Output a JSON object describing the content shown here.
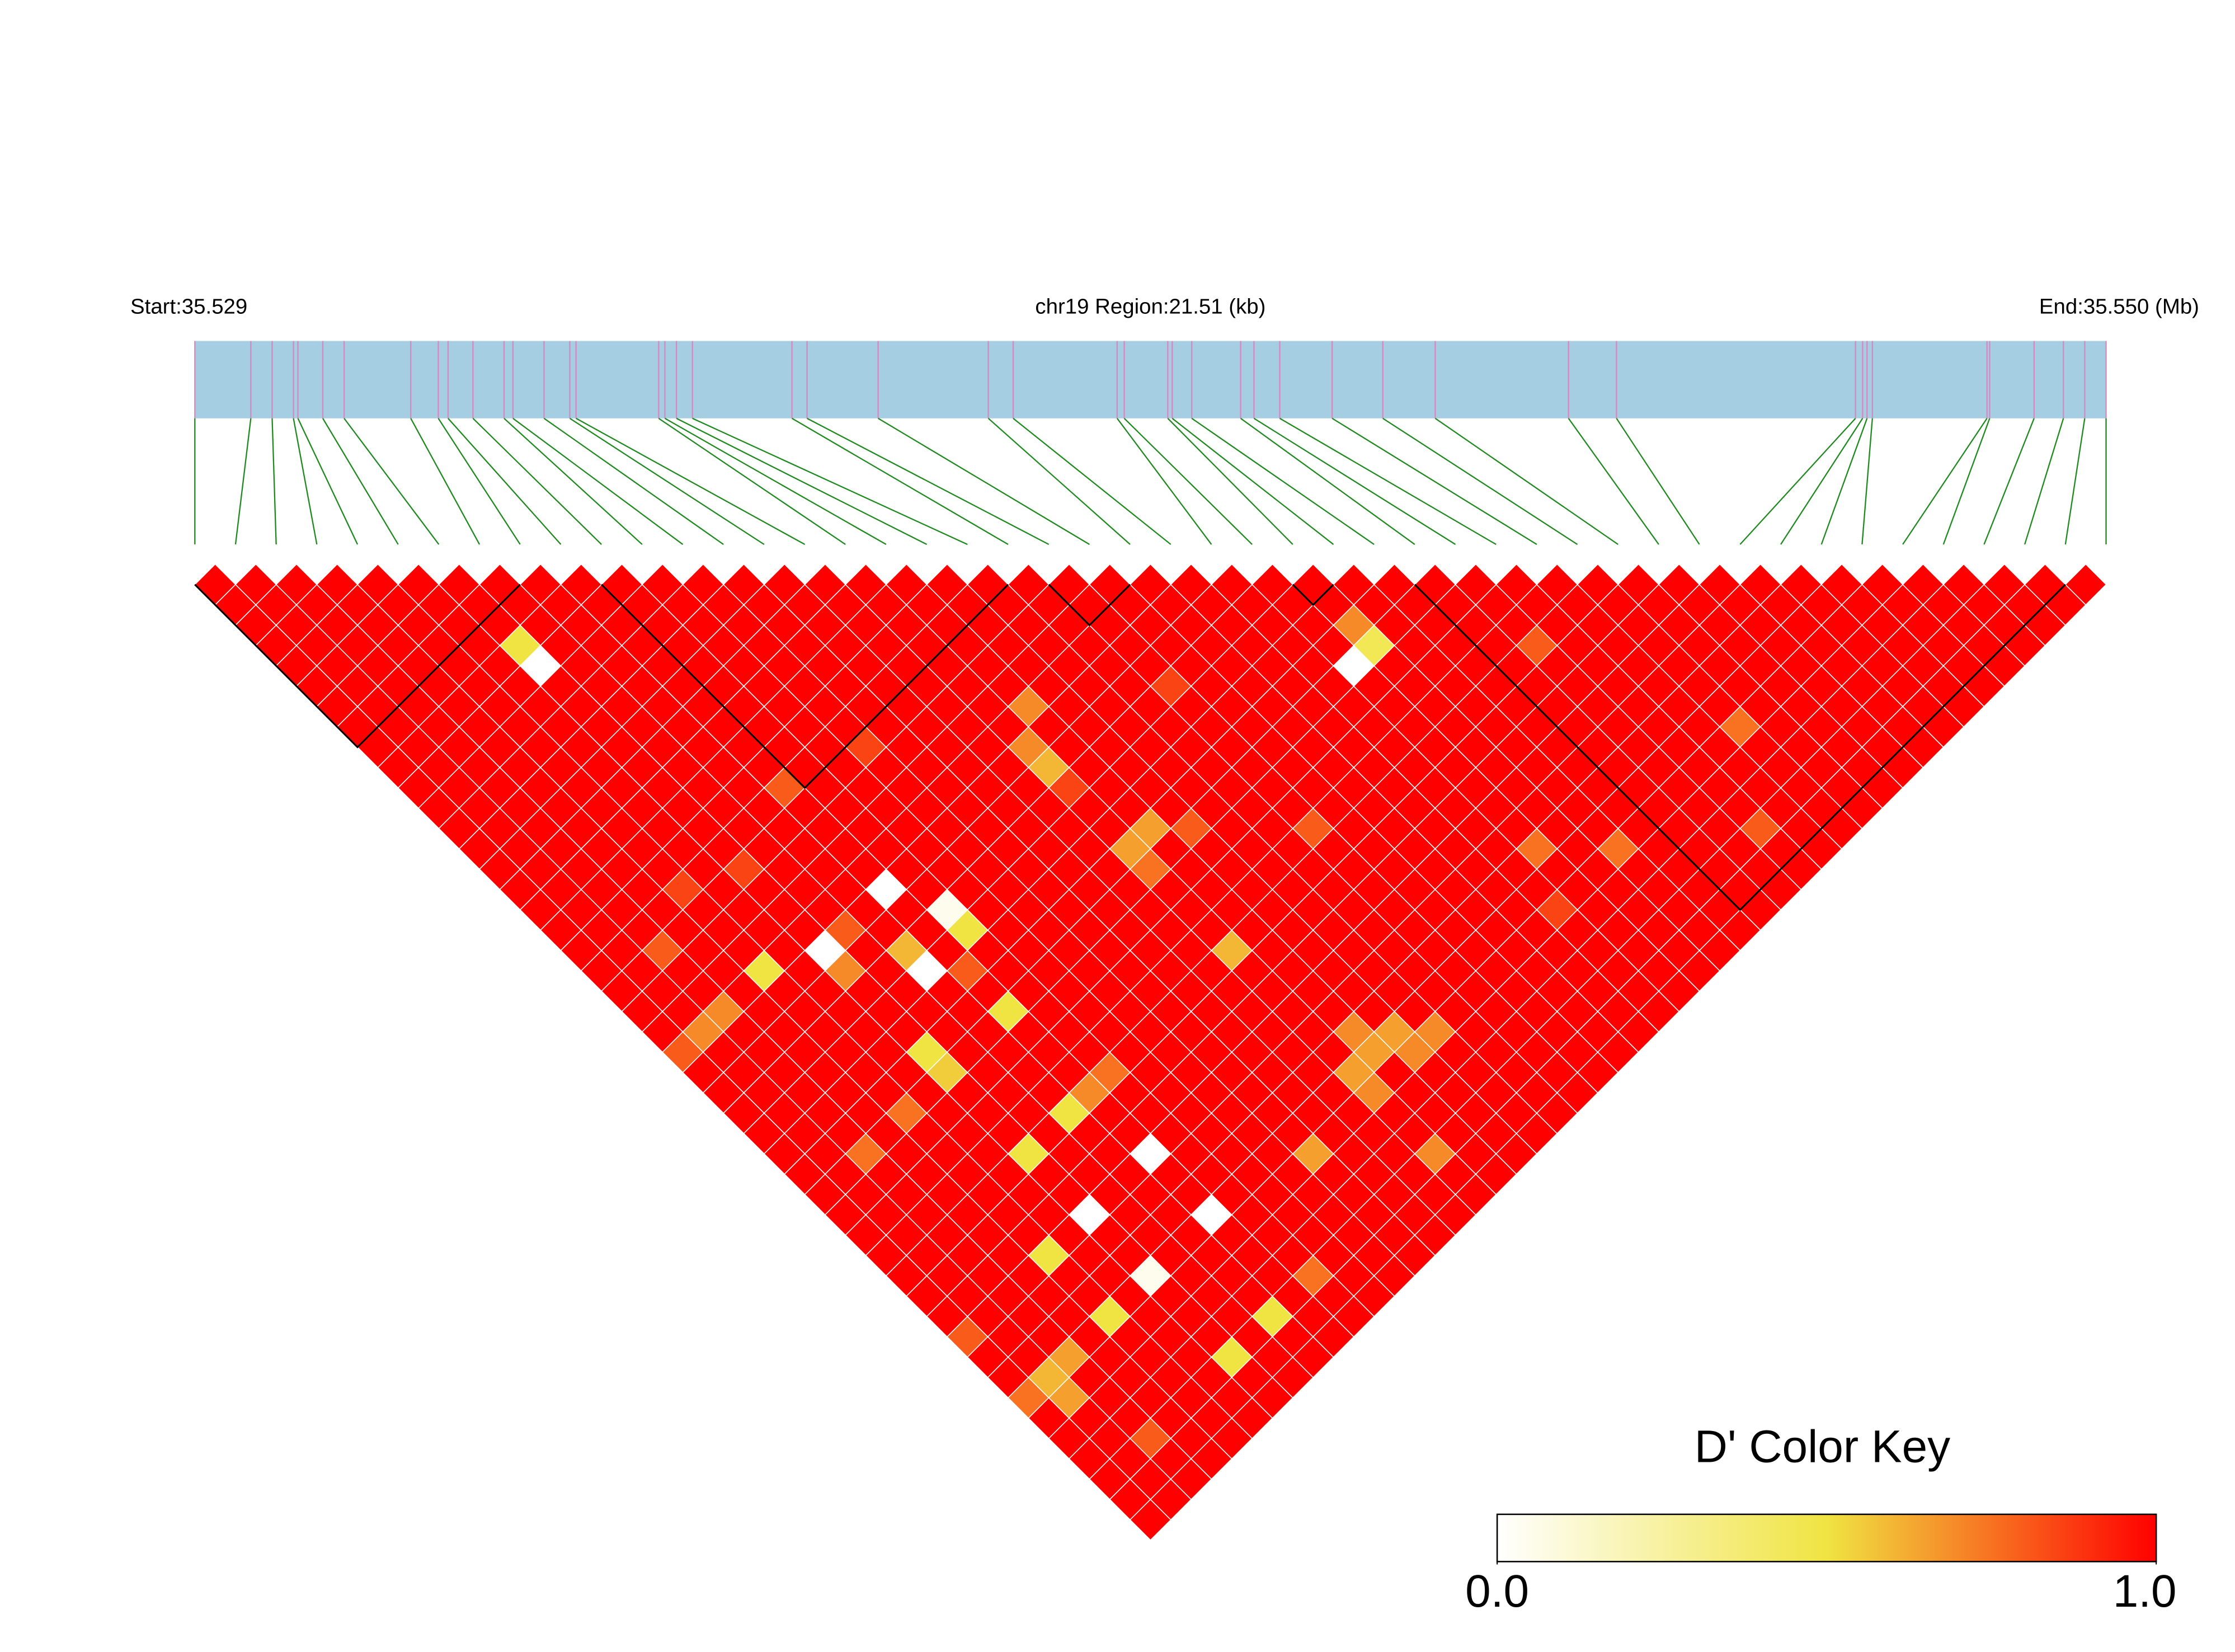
{
  "chart_data": {
    "type": "ld_heatmap",
    "start_label": "Start:35.529",
    "region_label": "chr19 Region:21.51 (kb)",
    "end_label": "End:35.550 (Mb)",
    "xlim": [
      0,
      21.51
    ],
    "snp_positions_kb": [
      0,
      0.63,
      0.87,
      1.11,
      1.16,
      1.44,
      1.68,
      2.43,
      2.74,
      2.85,
      3.13,
      3.48,
      3.58,
      3.93,
      4.22,
      4.29,
      5.22,
      5.29,
      5.42,
      5.6,
      6.72,
      6.89,
      7.69,
      8.93,
      9.21,
      10.38,
      10.46,
      10.95,
      11.0,
      11.22,
      11.77,
      11.92,
      12.21,
      12.8,
      13.37,
      13.96,
      15.46,
      16.0,
      18.69,
      18.77,
      18.82,
      18.88,
      20.17,
      20.2,
      20.7,
      21.03,
      21.27,
      21.51
    ],
    "dprime": [
      [
        1,
        1,
        1,
        1,
        1,
        1,
        1,
        1,
        1,
        1,
        1,
        1,
        1,
        1,
        1,
        1,
        1,
        1,
        1,
        1,
        1,
        1,
        1,
        0.8,
        1,
        1,
        1,
        1,
        1,
        1,
        1,
        1,
        1,
        1,
        1,
        1,
        1,
        0.8,
        1,
        1,
        0.75,
        1,
        1,
        1,
        1,
        1,
        1
      ],
      [
        1,
        1,
        1,
        1,
        1,
        1,
        1,
        1,
        1,
        1,
        1,
        1,
        1,
        1,
        1,
        1,
        1,
        1,
        1,
        1,
        1,
        1,
        0.7,
        1,
        1,
        1,
        1,
        1,
        1,
        1,
        1,
        1,
        1,
        1,
        1,
        1,
        1,
        1,
        1,
        0.6,
        0.65,
        1,
        1,
        1,
        1,
        1
      ],
      [
        1,
        1,
        1,
        1,
        1,
        1,
        1,
        1,
        1,
        1,
        1,
        1,
        1,
        1,
        1,
        1,
        1,
        1,
        0.8,
        1,
        1,
        0.7,
        1,
        1,
        1,
        1,
        1,
        1,
        0.75,
        1,
        1,
        1,
        1,
        1,
        1,
        1,
        1,
        1,
        0.65,
        1,
        1,
        1,
        0.8,
        1,
        1
      ],
      [
        1,
        1,
        1,
        1,
        1,
        1,
        1,
        1,
        1,
        1,
        1,
        1,
        1,
        1,
        1,
        1,
        1,
        1,
        1,
        1,
        1,
        1,
        1,
        1,
        1,
        1,
        1,
        1,
        1,
        1,
        1,
        1,
        1,
        1,
        1,
        1,
        1,
        1,
        1,
        1,
        1,
        1,
        1,
        1
      ],
      [
        1,
        1,
        1,
        1,
        1,
        1,
        1,
        1,
        1,
        1,
        1,
        1,
        1,
        1,
        1,
        0.85,
        1,
        1,
        1,
        0.5,
        1,
        1,
        1,
        1,
        1,
        1,
        0.75,
        1,
        1,
        1,
        1,
        1,
        1,
        0.5,
        1,
        1,
        0.5,
        1,
        1,
        1,
        1,
        1,
        1
      ],
      [
        1,
        1,
        1,
        1,
        1,
        1,
        1,
        1,
        1,
        1,
        1,
        1,
        1,
        1,
        1,
        1,
        1,
        1,
        1,
        1,
        1,
        1,
        1,
        1,
        1,
        1,
        1,
        1,
        1,
        1,
        1,
        1,
        1,
        1,
        1,
        1,
        1,
        1,
        1,
        1,
        1,
        1
      ],
      [
        1,
        1,
        1,
        0.5,
        0,
        1,
        1,
        1,
        1,
        1,
        1,
        1,
        1,
        1,
        0.85,
        1,
        1,
        1,
        0,
        0.7,
        1,
        1,
        1,
        0.5,
        0.55,
        1,
        1,
        1,
        0.5,
        1,
        1,
        0,
        1,
        1,
        0.05,
        1,
        1,
        1,
        0.5,
        1,
        1
      ],
      [
        1,
        1,
        1,
        1,
        1,
        1,
        1,
        1,
        1,
        1,
        1,
        1,
        1,
        1,
        1,
        1,
        1,
        0.8,
        1,
        1,
        1,
        1,
        1,
        1,
        1,
        1,
        1,
        1,
        1,
        1,
        1,
        1,
        1,
        1,
        1,
        1,
        1,
        1,
        1,
        1
      ],
      [
        1,
        1,
        1,
        1,
        1,
        1,
        1,
        1,
        1,
        1,
        1,
        1,
        1,
        1,
        1,
        1,
        1,
        1,
        0.6,
        0,
        1,
        1,
        1,
        1,
        1,
        1,
        0.5,
        1,
        1,
        1,
        1,
        1,
        1,
        1,
        1,
        1,
        0.5,
        1,
        1
      ],
      [
        1,
        1,
        1,
        1,
        1,
        1,
        1,
        1,
        1,
        1,
        0.8,
        1,
        1,
        1,
        1,
        0,
        1,
        1,
        1,
        0.8,
        1,
        0.5,
        1,
        1,
        1,
        0.7,
        1,
        1,
        0,
        1,
        1,
        0,
        1,
        1,
        1,
        1,
        1,
        1
      ],
      [
        1,
        1,
        1,
        1,
        1,
        1,
        1,
        1,
        1,
        1,
        1,
        1,
        1,
        1,
        1,
        1,
        0.05,
        0.5,
        1,
        1,
        1,
        1,
        1,
        1,
        0.75,
        1,
        1,
        1,
        1,
        1,
        1,
        1,
        1,
        1,
        0.75,
        1,
        1
      ],
      [
        1,
        1,
        1,
        1,
        1,
        1,
        1,
        1,
        1,
        1,
        1,
        1,
        1,
        1,
        1,
        1,
        1,
        1,
        1,
        1,
        1,
        1,
        1,
        1,
        1,
        1,
        1,
        1,
        1,
        1,
        1,
        1,
        1,
        1,
        1,
        1
      ],
      [
        1,
        1,
        1,
        1,
        1,
        1,
        1,
        1,
        0.85,
        1,
        1,
        1,
        1,
        1,
        1,
        1,
        1,
        1,
        1,
        1,
        1,
        1,
        1,
        1,
        1,
        1,
        1,
        1,
        1,
        1,
        1,
        1,
        1,
        1,
        1
      ],
      [
        1,
        1,
        1,
        1,
        1,
        1,
        1,
        1,
        1,
        1,
        1,
        1,
        1,
        1,
        1,
        1,
        1,
        1,
        1,
        1,
        1,
        1,
        1,
        1,
        1,
        1,
        1,
        1,
        0.65,
        1,
        1,
        1,
        1,
        1
      ],
      [
        1,
        1,
        1,
        1,
        1,
        1,
        1,
        1,
        1,
        1,
        1,
        1,
        1,
        1,
        1,
        1,
        1,
        1,
        1,
        1,
        1,
        1,
        1,
        1,
        1,
        1,
        1,
        1,
        1,
        1,
        1,
        1,
        1
      ],
      [
        1,
        1,
        1,
        1,
        1,
        1,
        1,
        1,
        1,
        1,
        1,
        1,
        1,
        1,
        1,
        1,
        1,
        1,
        1,
        1,
        1,
        1,
        1,
        1,
        1,
        1,
        1,
        1,
        1,
        1,
        1,
        1
      ],
      [
        1,
        1,
        1,
        1,
        1,
        1,
        1,
        1,
        0.7,
        0.6,
        0.85,
        1,
        1,
        0.65,
        0.75,
        1,
        1,
        1,
        0.6,
        1,
        1,
        1,
        1,
        1,
        0.65,
        0.7,
        1,
        1,
        0.7,
        1,
        1
      ],
      [
        1,
        1,
        1,
        1,
        1,
        1,
        0.7,
        1,
        1,
        1,
        1,
        1,
        0.65,
        1,
        1,
        1,
        1,
        1,
        1,
        1,
        1,
        1,
        0.7,
        0.65,
        1,
        1,
        1,
        1,
        1,
        1
      ],
      [
        1,
        1,
        1,
        1,
        1,
        1,
        1,
        1,
        1,
        1,
        1,
        1,
        0.8,
        1,
        1,
        1,
        1,
        1,
        1,
        1,
        1,
        1,
        0.65,
        0.7,
        1,
        1,
        1,
        1,
        1
      ],
      [
        1,
        1,
        1,
        1,
        1,
        1,
        1,
        1,
        1,
        1,
        1,
        1,
        1,
        1,
        1,
        1,
        1,
        1,
        1,
        1,
        1,
        1,
        0.7,
        1,
        1,
        1,
        1,
        1
      ],
      [
        1,
        1,
        1,
        1,
        1,
        1,
        1,
        1,
        1,
        1,
        1,
        1,
        1,
        1,
        1,
        1,
        1,
        1,
        1,
        1,
        1,
        1,
        1,
        1,
        1,
        1,
        1
      ],
      [
        1,
        1,
        1,
        1,
        1,
        0.85,
        1,
        1,
        1,
        1,
        1,
        1,
        0.8,
        1,
        1,
        1,
        1,
        1,
        1,
        1,
        1,
        1,
        1,
        1,
        1,
        1
      ],
      [
        1,
        1,
        1,
        1,
        1,
        1,
        1,
        1,
        1,
        1,
        1,
        1,
        1,
        1,
        1,
        1,
        1,
        1,
        1,
        1,
        1,
        1,
        1,
        1,
        1
      ],
      [
        1,
        1,
        1,
        1,
        1,
        1,
        1,
        1,
        1,
        1,
        1,
        1,
        1,
        1,
        1,
        1,
        1,
        1,
        1,
        1,
        1,
        1,
        1,
        1
      ],
      [
        1,
        1,
        1,
        1,
        1,
        1,
        1,
        1,
        1,
        1,
        1,
        1,
        1,
        1,
        1,
        1,
        1,
        1,
        1,
        1,
        1,
        1,
        1
      ],
      [
        1,
        1,
        1,
        1,
        1,
        1,
        1,
        1,
        1,
        1,
        1,
        1,
        1,
        1,
        1,
        1,
        0.85,
        1,
        1,
        1,
        1,
        1
      ],
      [
        1,
        1,
        1,
        1,
        0,
        1,
        1,
        1,
        1,
        1,
        1,
        1,
        1,
        0.75,
        1,
        1,
        1,
        1,
        1,
        1,
        1
      ],
      [
        1,
        1,
        0.7,
        0.45,
        1,
        1,
        1,
        1,
        1,
        1,
        1,
        1,
        1,
        1,
        1,
        1,
        1,
        1,
        1,
        1
      ],
      [
        1,
        1,
        1,
        1,
        1,
        1,
        1,
        1,
        1,
        1,
        1,
        1,
        1,
        0.75,
        1,
        1,
        1,
        1,
        1
      ],
      [
        1,
        1,
        1,
        1,
        1,
        1,
        1,
        1,
        1,
        1,
        1,
        1,
        1,
        1,
        1,
        1,
        1,
        1
      ],
      [
        1,
        1,
        1,
        1,
        1,
        1,
        1,
        1,
        1,
        1,
        1,
        1,
        1,
        1,
        1,
        1,
        1
      ],
      [
        1,
        1,
        1,
        0.8,
        1,
        1,
        1,
        1,
        1,
        1,
        1,
        1,
        1,
        1,
        1,
        1
      ],
      [
        1,
        1,
        1,
        1,
        1,
        1,
        1,
        1,
        1,
        1,
        1,
        1,
        0.8,
        1,
        1
      ],
      [
        1,
        1,
        1,
        1,
        1,
        1,
        1,
        1,
        1,
        1,
        1,
        1,
        1,
        1
      ],
      [
        1,
        1,
        1,
        1,
        1,
        1,
        1,
        0.75,
        1,
        1,
        1,
        1,
        1
      ],
      [
        1,
        1,
        1,
        1,
        1,
        1,
        1,
        1,
        1,
        1,
        1,
        1
      ],
      [
        1,
        1,
        1,
        1,
        1,
        1,
        1,
        1,
        1,
        1,
        1
      ],
      [
        1,
        1,
        1,
        1,
        1,
        1,
        1,
        1,
        1,
        1
      ],
      [
        1,
        1,
        1,
        1,
        1,
        1,
        1,
        1,
        1
      ],
      [
        1,
        1,
        1,
        1,
        1,
        1,
        1,
        1
      ],
      [
        1,
        1,
        1,
        1,
        1,
        1,
        1
      ],
      [
        1,
        1,
        1,
        1,
        1,
        1
      ],
      [
        1,
        1,
        1,
        1,
        1
      ],
      [
        1,
        1,
        1,
        1
      ],
      [
        1,
        1,
        1
      ],
      [
        1,
        1
      ],
      [
        1
      ]
    ],
    "blocks": [
      [
        0,
        8
      ],
      [
        10,
        20
      ],
      [
        21,
        23
      ],
      [
        27,
        28
      ],
      [
        30,
        46
      ]
    ],
    "colormap": [
      {
        "value": 0,
        "color": "#ffffff"
      },
      {
        "value": 0.5,
        "color": "#f0e442"
      },
      {
        "value": 1,
        "color": "#ff0000"
      }
    ],
    "color_key": {
      "title": "D' Color Key",
      "lim": [
        0,
        1
      ],
      "ticks": [
        {
          "value": 0,
          "label": "0.0"
        },
        {
          "value": 1,
          "label": "1.0"
        }
      ]
    },
    "bar_color": "#a6cee3",
    "position_line_color": "#d688c0",
    "connector_color": "#1f8a1f",
    "block_color": "#000000",
    "cell_border_color": "#ffffff"
  }
}
